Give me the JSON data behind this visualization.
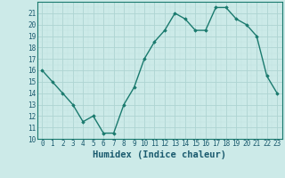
{
  "x": [
    0,
    1,
    2,
    3,
    4,
    5,
    6,
    7,
    8,
    9,
    10,
    11,
    12,
    13,
    14,
    15,
    16,
    17,
    18,
    19,
    20,
    21,
    22,
    23
  ],
  "y": [
    16,
    15,
    14,
    13,
    11.5,
    12,
    10.5,
    10.5,
    13,
    14.5,
    17,
    18.5,
    19.5,
    21,
    20.5,
    19.5,
    19.5,
    21.5,
    21.5,
    20.5,
    20,
    19,
    15.5,
    14
  ],
  "xlabel": "Humidex (Indice chaleur)",
  "xlim": [
    -0.5,
    23.5
  ],
  "ylim": [
    10,
    22
  ],
  "yticks": [
    10,
    11,
    12,
    13,
    14,
    15,
    16,
    17,
    18,
    19,
    20,
    21
  ],
  "xticks": [
    0,
    1,
    2,
    3,
    4,
    5,
    6,
    7,
    8,
    9,
    10,
    11,
    12,
    13,
    14,
    15,
    16,
    17,
    18,
    19,
    20,
    21,
    22,
    23
  ],
  "line_color": "#1a7a6e",
  "marker": "D",
  "marker_size": 1.8,
  "bg_color": "#cceae8",
  "grid_major_color": "#aed4d2",
  "grid_minor_color": "#c2e3e1",
  "tick_label_fontsize": 5.5,
  "xlabel_fontsize": 7.5,
  "line_width": 1.0,
  "label_color": "#1a5a6e"
}
